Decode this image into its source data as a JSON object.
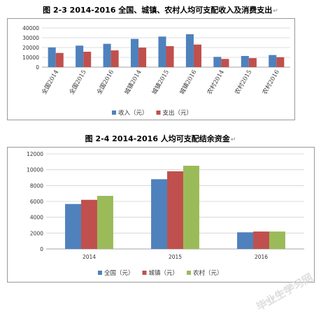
{
  "chart_data": [
    {
      "type": "bar",
      "title": "图 2-3   2014-2016 全国、城镇、农村人均可支配收入及消费支出",
      "categories": [
        "全国2014",
        "全国2015",
        "全国2016",
        "城镇2014",
        "城镇2015",
        "城镇2016",
        "农村2014",
        "农村2015",
        "农村2016"
      ],
      "series": [
        {
          "name": "收入（元）",
          "color": "#4F81BD",
          "values": [
            20167,
            21966,
            23821,
            28844,
            31195,
            33616,
            10489,
            11422,
            12363
          ]
        },
        {
          "name": "支出（元）",
          "color": "#C0504D",
          "values": [
            14491,
            15712,
            17111,
            19968,
            21392,
            23079,
            8383,
            9223,
            10130
          ]
        }
      ],
      "yticks": [
        "0",
        "10000",
        "20000",
        "30000",
        "40000"
      ],
      "ylim": [
        0,
        40000
      ],
      "legend": "bottom",
      "grid": true
    },
    {
      "type": "bar",
      "title": "图 2-4   2014-2016 人均可支配结余资金",
      "categories": [
        "2014",
        "2015",
        "2016"
      ],
      "series": [
        {
          "name": "全国（元）",
          "color": "#4F81BD",
          "values": [
            5676,
            8800,
            2100
          ]
        },
        {
          "name": "城镇（元）",
          "color": "#C0504D",
          "values": [
            6200,
            9800,
            2200
          ]
        },
        {
          "name": "农村（元）",
          "color": "#9BBB59",
          "values": [
            6700,
            10500,
            2200
          ]
        }
      ],
      "yticks": [
        "0",
        "2000",
        "4000",
        "6000",
        "8000",
        "10000",
        "12000"
      ],
      "ylim": [
        0,
        12000
      ],
      "legend": "bottom",
      "grid": true
    }
  ],
  "page": {
    "para_mark": "↵",
    "watermark": "毕业生学习网",
    "watermark_sub": "www.sbvv.com"
  }
}
